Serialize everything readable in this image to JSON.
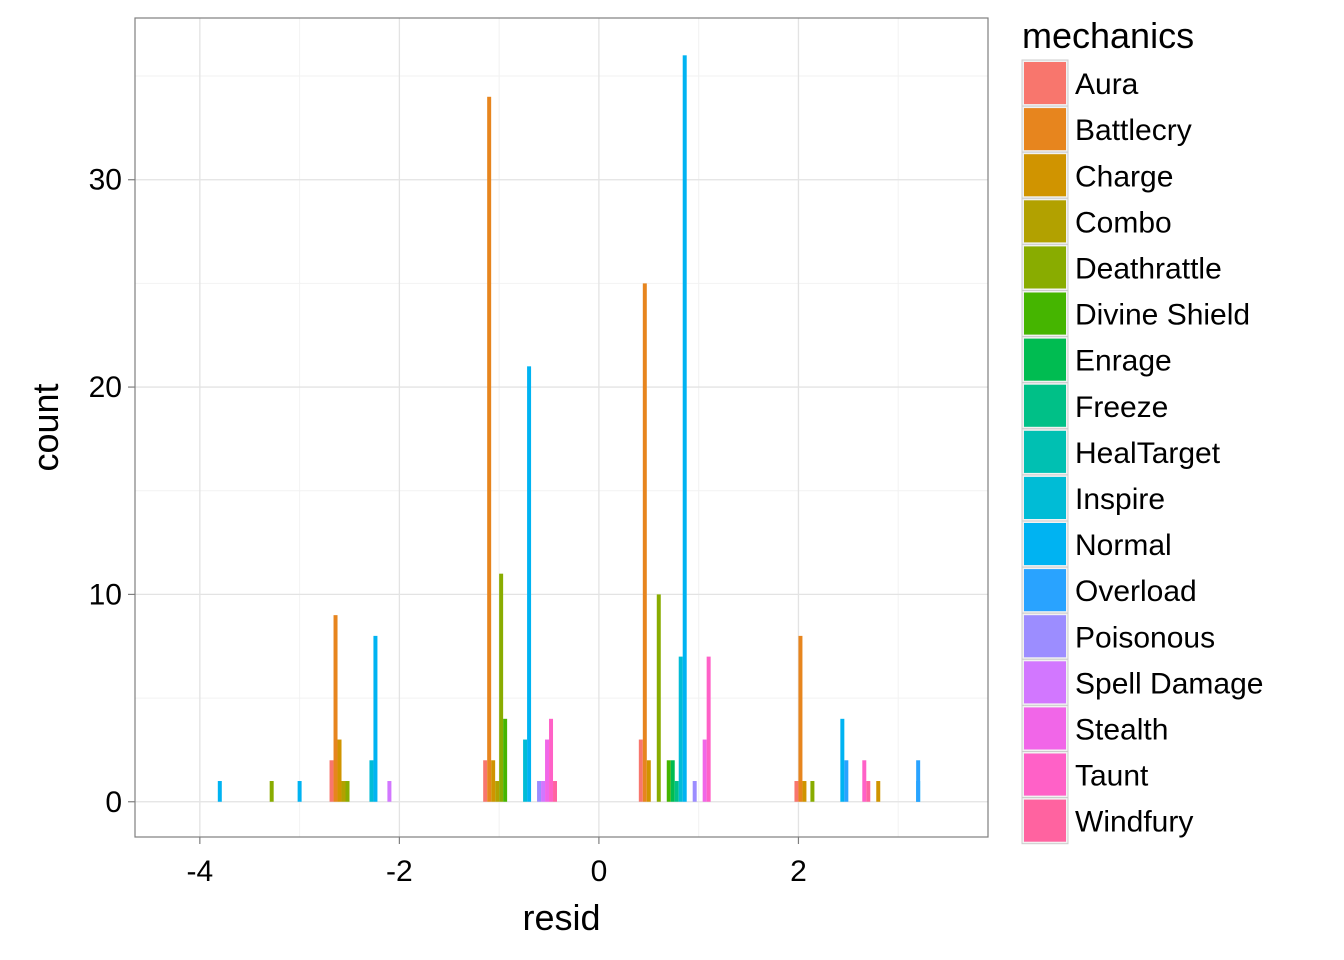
{
  "chart_data": {
    "type": "bar",
    "xlabel": "resid",
    "ylabel": "count",
    "xlim": [
      -4.65,
      3.9
    ],
    "ylim": [
      -1.7,
      37.8
    ],
    "x_ticks": [
      -4,
      -2,
      0,
      2
    ],
    "y_ticks": [
      0,
      10,
      20,
      30
    ],
    "x_tick_labels": [
      "-4",
      "-2",
      "0",
      "2"
    ],
    "y_tick_labels": [
      "0",
      "10",
      "20",
      "30"
    ],
    "grid": true,
    "bar_width": 0.04,
    "legend": {
      "title": "mechanics",
      "position": "right",
      "entries": [
        {
          "label": "Aura",
          "color": "#F8766D"
        },
        {
          "label": "Battlecry",
          "color": "#E7851E"
        },
        {
          "label": "Charge",
          "color": "#D09400"
        },
        {
          "label": "Combo",
          "color": "#B2A100"
        },
        {
          "label": "Deathrattle",
          "color": "#89AC00"
        },
        {
          "label": "Divine Shield",
          "color": "#45B500"
        },
        {
          "label": "Enrage",
          "color": "#00BC51"
        },
        {
          "label": "Freeze",
          "color": "#00C087"
        },
        {
          "label": "HealTarget",
          "color": "#00C0B2"
        },
        {
          "label": "Inspire",
          "color": "#00BCD6"
        },
        {
          "label": "Normal",
          "color": "#00B3F2"
        },
        {
          "label": "Overload",
          "color": "#29A3FF"
        },
        {
          "label": "Poisonous",
          "color": "#9C8DFF"
        },
        {
          "label": "Spell Damage",
          "color": "#D277FF"
        },
        {
          "label": "Stealth",
          "color": "#F166E8"
        },
        {
          "label": "Taunt",
          "color": "#FF61C7"
        },
        {
          "label": "Windfury",
          "color": "#FF63A0"
        }
      ]
    },
    "bars": [
      {
        "x": -3.8,
        "y": 1,
        "color": "#00B3F2"
      },
      {
        "x": -3.28,
        "y": 1,
        "color": "#89AC00"
      },
      {
        "x": -3.0,
        "y": 1,
        "color": "#00B3F2"
      },
      {
        "x": -2.68,
        "y": 2,
        "color": "#F8766D"
      },
      {
        "x": -2.64,
        "y": 9,
        "color": "#E7851E"
      },
      {
        "x": -2.6,
        "y": 3,
        "color": "#D09400"
      },
      {
        "x": -2.56,
        "y": 1,
        "color": "#B2A100"
      },
      {
        "x": -2.52,
        "y": 1,
        "color": "#89AC00"
      },
      {
        "x": -2.28,
        "y": 2,
        "color": "#00BCD6"
      },
      {
        "x": -2.24,
        "y": 8,
        "color": "#00B3F2"
      },
      {
        "x": -2.1,
        "y": 1,
        "color": "#D277FF"
      },
      {
        "x": -1.14,
        "y": 2,
        "color": "#F8766D"
      },
      {
        "x": -1.1,
        "y": 34,
        "color": "#E7851E"
      },
      {
        "x": -1.06,
        "y": 2,
        "color": "#D09400"
      },
      {
        "x": -1.02,
        "y": 1,
        "color": "#B2A100"
      },
      {
        "x": -0.98,
        "y": 11,
        "color": "#89AC00"
      },
      {
        "x": -0.94,
        "y": 4,
        "color": "#45B500"
      },
      {
        "x": -0.74,
        "y": 3,
        "color": "#00BCD6"
      },
      {
        "x": -0.7,
        "y": 21,
        "color": "#00B3F2"
      },
      {
        "x": -0.6,
        "y": 1,
        "color": "#9C8DFF"
      },
      {
        "x": -0.56,
        "y": 1,
        "color": "#D277FF"
      },
      {
        "x": -0.52,
        "y": 3,
        "color": "#F166E8"
      },
      {
        "x": -0.48,
        "y": 4,
        "color": "#FF61C7"
      },
      {
        "x": -0.44,
        "y": 1,
        "color": "#FF63A0"
      },
      {
        "x": 0.42,
        "y": 3,
        "color": "#F8766D"
      },
      {
        "x": 0.46,
        "y": 25,
        "color": "#E7851E"
      },
      {
        "x": 0.5,
        "y": 2,
        "color": "#D09400"
      },
      {
        "x": 0.6,
        "y": 10,
        "color": "#89AC00"
      },
      {
        "x": 0.7,
        "y": 2,
        "color": "#45B500"
      },
      {
        "x": 0.74,
        "y": 2,
        "color": "#00BC51"
      },
      {
        "x": 0.78,
        "y": 1,
        "color": "#00C087"
      },
      {
        "x": 0.82,
        "y": 7,
        "color": "#00BCD6"
      },
      {
        "x": 0.86,
        "y": 36,
        "color": "#00B3F2"
      },
      {
        "x": 0.96,
        "y": 1,
        "color": "#9C8DFF"
      },
      {
        "x": 1.06,
        "y": 3,
        "color": "#F166E8"
      },
      {
        "x": 1.1,
        "y": 7,
        "color": "#FF61C7"
      },
      {
        "x": 1.98,
        "y": 1,
        "color": "#F8766D"
      },
      {
        "x": 2.02,
        "y": 8,
        "color": "#E7851E"
      },
      {
        "x": 2.06,
        "y": 1,
        "color": "#D09400"
      },
      {
        "x": 2.14,
        "y": 1,
        "color": "#89AC00"
      },
      {
        "x": 2.44,
        "y": 4,
        "color": "#00B3F2"
      },
      {
        "x": 2.48,
        "y": 2,
        "color": "#29A3FF"
      },
      {
        "x": 2.66,
        "y": 2,
        "color": "#FF61C7"
      },
      {
        "x": 2.7,
        "y": 1,
        "color": "#FF63A0"
      },
      {
        "x": 2.8,
        "y": 1,
        "color": "#D09400"
      },
      {
        "x": 3.2,
        "y": 1,
        "color": "#00B3F2"
      },
      {
        "x": 3.2,
        "y": 2,
        "color": "#29A3FF"
      }
    ]
  }
}
